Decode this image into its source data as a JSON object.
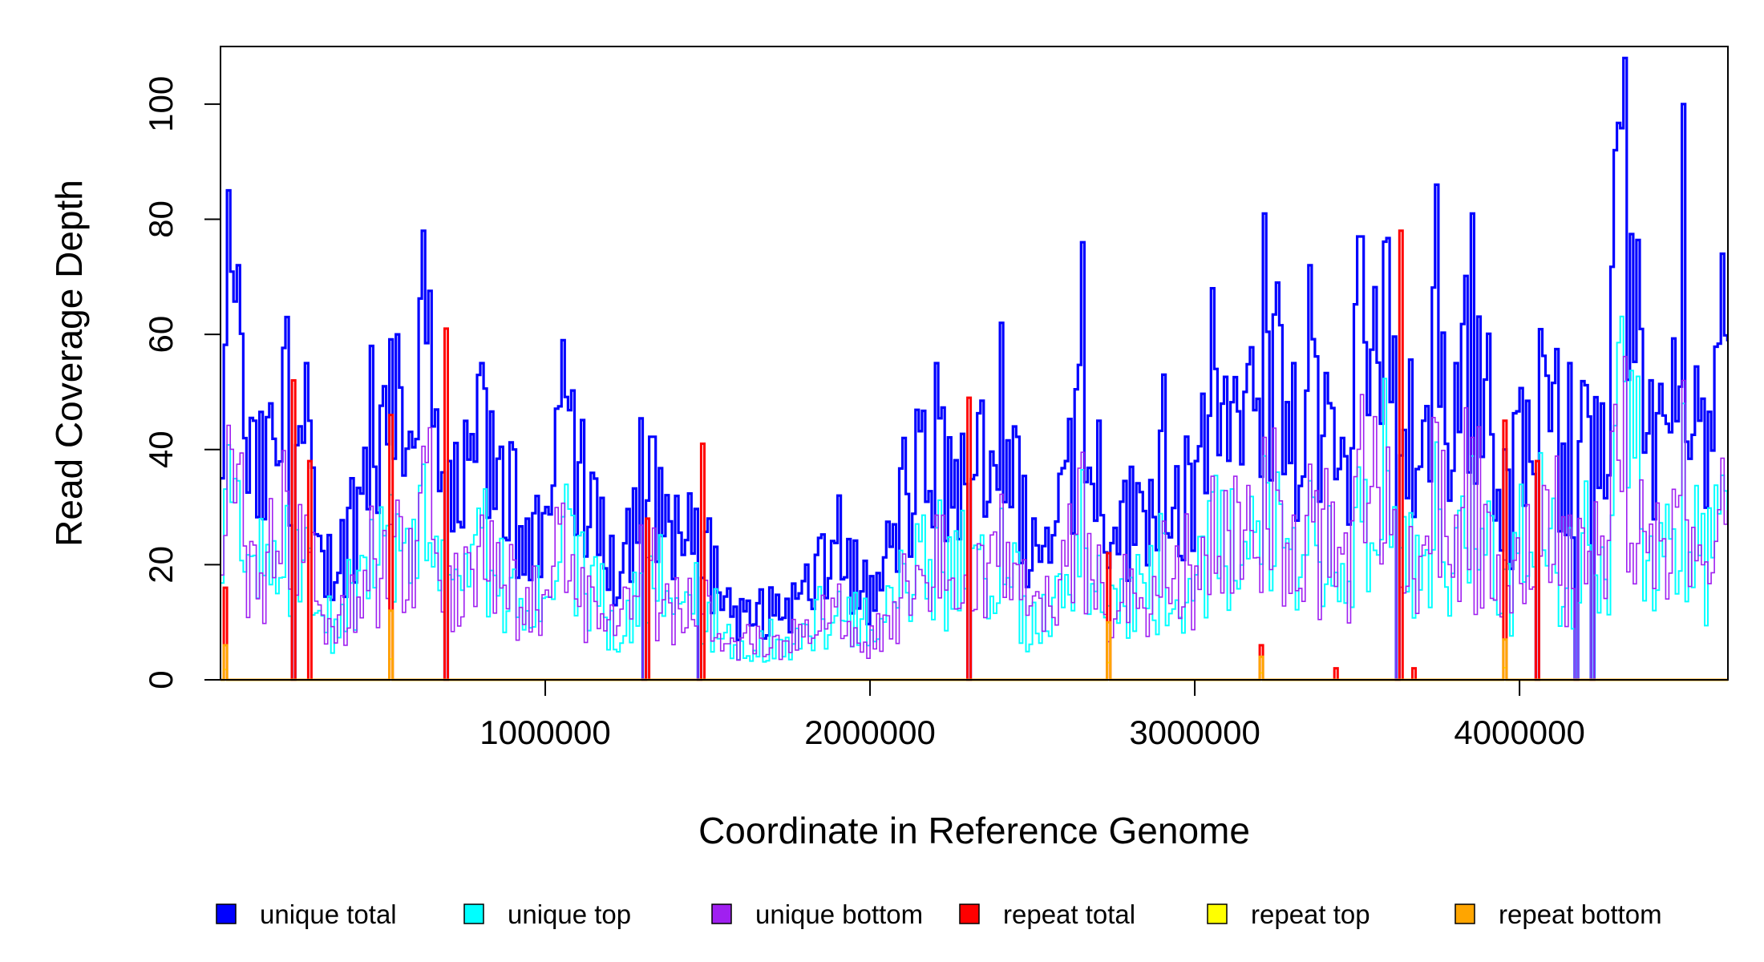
{
  "chart_data": {
    "type": "line",
    "xlabel": "Coordinate in Reference Genome",
    "ylabel": "Read Coverage Depth",
    "xlim": [
      0,
      4641652
    ],
    "ylim": [
      0,
      110
    ],
    "x_ticks": [
      1000000,
      2000000,
      3000000,
      4000000
    ],
    "x_tick_labels": [
      "1000000",
      "2000000",
      "3000000",
      "4000000"
    ],
    "y_ticks": [
      0,
      20,
      40,
      60,
      80,
      100
    ],
    "y_tick_labels": [
      "0",
      "20",
      "40",
      "60",
      "80",
      "100"
    ],
    "bin_size": 10000,
    "grid": false,
    "legend_position": "bottom",
    "series": [
      {
        "name": "unique total",
        "color": "#0000FF"
      },
      {
        "name": "unique top",
        "color": "#00FFFF"
      },
      {
        "name": "unique bottom",
        "color": "#A020F0"
      },
      {
        "name": "repeat total",
        "color": "#FF0000"
      },
      {
        "name": "repeat top",
        "color": "#FFFF00"
      },
      {
        "name": "repeat bottom",
        "color": "#FFA500"
      }
    ],
    "unique_total_anchors": [
      [
        0,
        35
      ],
      [
        20000,
        85
      ],
      [
        50000,
        72
      ],
      [
        100000,
        45
      ],
      [
        200000,
        63
      ],
      [
        260000,
        55
      ],
      [
        300000,
        25
      ],
      [
        400000,
        35
      ],
      [
        460000,
        58
      ],
      [
        540000,
        60
      ],
      [
        620000,
        78
      ],
      [
        700000,
        38
      ],
      [
        800000,
        55
      ],
      [
        900000,
        40
      ],
      [
        1000000,
        30
      ],
      [
        1050000,
        59
      ],
      [
        1200000,
        25
      ],
      [
        1300000,
        48
      ],
      [
        1500000,
        28
      ],
      [
        1600000,
        14
      ],
      [
        1800000,
        20
      ],
      [
        1900000,
        32
      ],
      [
        2000000,
        18
      ],
      [
        2100000,
        42
      ],
      [
        2200000,
        55
      ],
      [
        2300000,
        40
      ],
      [
        2400000,
        62
      ],
      [
        2500000,
        28
      ],
      [
        2600000,
        38
      ],
      [
        2650000,
        76
      ],
      [
        2700000,
        45
      ],
      [
        2800000,
        37
      ],
      [
        2900000,
        53
      ],
      [
        3000000,
        38
      ],
      [
        3050000,
        68
      ],
      [
        3150000,
        50
      ],
      [
        3210000,
        81
      ],
      [
        3300000,
        55
      ],
      [
        3350000,
        72
      ],
      [
        3450000,
        42
      ],
      [
        3500000,
        77
      ],
      [
        3620000,
        83
      ],
      [
        3700000,
        45
      ],
      [
        3740000,
        86
      ],
      [
        3800000,
        55
      ],
      [
        3850000,
        81
      ],
      [
        3950000,
        40
      ],
      [
        4050000,
        62
      ],
      [
        4150000,
        55
      ],
      [
        4250000,
        48
      ],
      [
        4290000,
        92
      ],
      [
        4320000,
        108
      ],
      [
        4400000,
        52
      ],
      [
        4500000,
        100
      ],
      [
        4550000,
        45
      ],
      [
        4620000,
        74
      ]
    ],
    "repeat_total_spikes": [
      [
        10000,
        16
      ],
      [
        220000,
        52
      ],
      [
        270000,
        38
      ],
      [
        520000,
        46
      ],
      [
        690000,
        61
      ],
      [
        1310000,
        28
      ],
      [
        1480000,
        41
      ],
      [
        2300000,
        49
      ],
      [
        2730000,
        22
      ],
      [
        3200000,
        6
      ],
      [
        3430000,
        2
      ],
      [
        3630000,
        78
      ],
      [
        3670000,
        2
      ],
      [
        3950000,
        45
      ],
      [
        4050000,
        38
      ]
    ],
    "repeat_bottom_spikes": [
      [
        10000,
        6
      ],
      [
        520000,
        12
      ],
      [
        2730000,
        10
      ],
      [
        3200000,
        4
      ],
      [
        3950000,
        7
      ]
    ],
    "dropouts": [
      220000,
      690000,
      1300000,
      1470000,
      2300000,
      3620000,
      4050000,
      4170000,
      4220000
    ]
  }
}
